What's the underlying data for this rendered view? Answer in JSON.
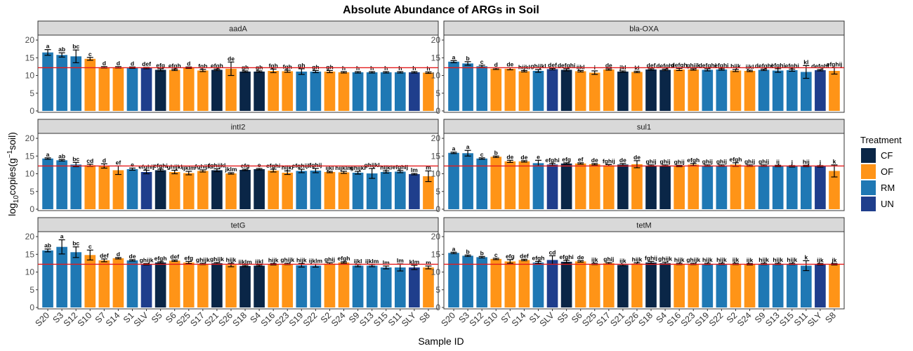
{
  "chart_data": {
    "type": "bar",
    "title": "Absolute Abundance of ARGs in Soil",
    "xlabel": "Sample ID",
    "ylabel": {
      "prefix": "log",
      "sub": "10",
      "mid": "copies(g",
      "sup": "−1",
      "suffix": "soil)"
    },
    "ylim": [
      0,
      21
    ],
    "yticks": [
      0,
      5,
      10,
      15,
      20
    ],
    "reference_line": {
      "value": 12.2,
      "color": "#e41a1c"
    },
    "legend": {
      "title": "Treatment",
      "position": "right",
      "items": [
        {
          "label": "CF",
          "color": "#0a2647"
        },
        {
          "label": "OF",
          "color": "#ff9417"
        },
        {
          "label": "RM",
          "color": "#1f78b4"
        },
        {
          "label": "UN",
          "color": "#1f3e8c"
        }
      ]
    },
    "panels": [
      {
        "gene": "aadA",
        "samples": [
          "S20",
          "S3",
          "S12",
          "S10",
          "S7",
          "S14",
          "S1",
          "SLV",
          "S5",
          "S6",
          "S25",
          "S17",
          "S21",
          "S26",
          "S18",
          "S4",
          "S16",
          "S23",
          "S19",
          "S22",
          "S2",
          "S24",
          "S9",
          "S13",
          "S15",
          "S11",
          "SLY",
          "S8"
        ],
        "treatments": [
          "RM",
          "RM",
          "RM",
          "OF",
          "OF",
          "OF",
          "RM",
          "UN",
          "CF",
          "OF",
          "OF",
          "OF",
          "CF",
          "OF",
          "CF",
          "CF",
          "OF",
          "OF",
          "RM",
          "RM",
          "OF",
          "OF",
          "RM",
          "RM",
          "RM",
          "RM",
          "UN",
          "OF"
        ],
        "values": [
          16.5,
          15.8,
          15.4,
          14.7,
          12.3,
          12.3,
          12.2,
          12.1,
          11.6,
          11.6,
          12.2,
          11.4,
          11.6,
          11.9,
          11.1,
          11.1,
          11.3,
          11.2,
          11.1,
          11.1,
          11.1,
          10.9,
          10.9,
          10.9,
          10.9,
          10.9,
          10.9,
          10.8
        ],
        "errors": [
          0.8,
          0.6,
          1.8,
          0.4,
          0.2,
          0.2,
          0.2,
          0.2,
          0.3,
          0.2,
          0.2,
          0.3,
          0.2,
          1.9,
          0.2,
          0.2,
          0.5,
          0.3,
          0.8,
          0.3,
          0.3,
          0.2,
          0.2,
          0.2,
          0.2,
          0.2,
          0.2,
          0.2
        ],
        "letters": [
          "a",
          "ab",
          "bc",
          "c",
          "d",
          "d",
          "d",
          "def",
          "efg",
          "efgh",
          "d",
          "fgh",
          "efgh",
          "de",
          "gh",
          "gh",
          "fgh",
          "fgh",
          "gh",
          "gh",
          "gh",
          "h",
          "h",
          "h",
          "h",
          "h",
          "h",
          "h"
        ]
      },
      {
        "gene": "bla-OXA",
        "samples": [
          "S20",
          "S3",
          "S12",
          "S10",
          "S7",
          "S14",
          "S1",
          "SLV",
          "S5",
          "S6",
          "S25",
          "S17",
          "S21",
          "S26",
          "S18",
          "S4",
          "S16",
          "S23",
          "S19",
          "S22",
          "S2",
          "S24",
          "S9",
          "S13",
          "S15",
          "S11",
          "SLY",
          "S8"
        ],
        "treatments": [
          "RM",
          "RM",
          "RM",
          "OF",
          "OF",
          "OF",
          "RM",
          "UN",
          "CF",
          "OF",
          "OF",
          "OF",
          "CF",
          "OF",
          "CF",
          "CF",
          "OF",
          "OF",
          "RM",
          "RM",
          "OF",
          "OF",
          "RM",
          "RM",
          "RM",
          "RM",
          "UN",
          "OF"
        ],
        "values": [
          13.9,
          13.4,
          12.6,
          11.9,
          11.9,
          11.2,
          11.3,
          11.8,
          11.6,
          11.2,
          10.8,
          11.7,
          11.1,
          11.0,
          11.7,
          11.6,
          11.7,
          11.7,
          11.6,
          11.7,
          11.4,
          11.3,
          11.6,
          11.4,
          11.5,
          11.0,
          11.5,
          11.3
        ],
        "errors": [
          0.3,
          0.5,
          0.3,
          0.2,
          0.3,
          0.2,
          0.4,
          0.2,
          0.3,
          0.2,
          0.5,
          0.2,
          0.2,
          0.2,
          0.2,
          0.2,
          0.3,
          0.2,
          0.3,
          0.2,
          0.3,
          0.2,
          0.2,
          0.5,
          0.3,
          1.8,
          0.2,
          0.9
        ],
        "letters": [
          "a",
          "b",
          "c",
          "d",
          "de",
          "hijkl",
          "ghijkl",
          "def",
          "defghi",
          "ijkl",
          "i",
          "de",
          "jkl",
          "kl",
          "def",
          "defghi",
          "defgh",
          "ghijk",
          "defghi",
          "efghi",
          "hijk",
          "ijkl",
          "defghi",
          "efghi",
          "efghi",
          "kl",
          "defghi",
          "efghij"
        ]
      },
      {
        "gene": "intI2",
        "samples": [
          "S20",
          "S3",
          "S12",
          "S10",
          "S7",
          "S14",
          "S1",
          "SLV",
          "S5",
          "S6",
          "S25",
          "S17",
          "S21",
          "S26",
          "S18",
          "S4",
          "S16",
          "S23",
          "S19",
          "S22",
          "S2",
          "S24",
          "S9",
          "S13",
          "S15",
          "S11",
          "SLY",
          "S8"
        ],
        "treatments": [
          "RM",
          "RM",
          "RM",
          "OF",
          "OF",
          "OF",
          "RM",
          "UN",
          "CF",
          "OF",
          "OF",
          "OF",
          "CF",
          "OF",
          "CF",
          "CF",
          "OF",
          "OF",
          "RM",
          "RM",
          "OF",
          "OF",
          "RM",
          "RM",
          "RM",
          "RM",
          "UN",
          "OF"
        ],
        "values": [
          14.3,
          13.8,
          12.6,
          12.4,
          12.2,
          11.0,
          11.3,
          10.5,
          11.0,
          10.5,
          10.2,
          10.8,
          11.0,
          10.1,
          11.1,
          11.3,
          10.9,
          10.3,
          10.8,
          10.9,
          10.5,
          10.4,
          10.3,
          10.1,
          10.5,
          10.6,
          9.9,
          9.3
        ],
        "errors": [
          0.2,
          0.2,
          0.6,
          0.3,
          0.6,
          1.2,
          0.3,
          0.5,
          0.3,
          0.5,
          0.5,
          0.3,
          0.4,
          0.2,
          0.2,
          0.2,
          0.4,
          0.5,
          0.5,
          0.6,
          0.2,
          0.3,
          0.4,
          1.4,
          0.3,
          0.3,
          0.2,
          1.5
        ],
        "letters": [
          "a",
          "ab",
          "bc",
          "cd",
          "d",
          "ef",
          "e",
          "efghij",
          "efghi",
          "ghijkl",
          "ijklm",
          "fghijk",
          "fghijkl",
          "jklm",
          "efg",
          "e",
          "efghi",
          "hijkl",
          "efghijk",
          "fghij",
          "ijkl",
          "hijklm",
          "ghijkl",
          "ghijkl",
          "hijkl",
          "efghij",
          "lm",
          "m"
        ]
      },
      {
        "gene": "sul1",
        "samples": [
          "S20",
          "S3",
          "S12",
          "S10",
          "S7",
          "S14",
          "S1",
          "SLV",
          "S5",
          "S6",
          "S25",
          "S17",
          "S21",
          "S26",
          "S18",
          "S4",
          "S16",
          "S23",
          "S19",
          "S22",
          "S2",
          "S24",
          "S9",
          "S13",
          "S15",
          "S11",
          "SLY",
          "S8"
        ],
        "treatments": [
          "RM",
          "RM",
          "RM",
          "OF",
          "OF",
          "OF",
          "RM",
          "UN",
          "CF",
          "OF",
          "OF",
          "OF",
          "CF",
          "OF",
          "CF",
          "CF",
          "OF",
          "OF",
          "RM",
          "RM",
          "OF",
          "OF",
          "RM",
          "RM",
          "RM",
          "RM",
          "UN",
          "OF"
        ],
        "values": [
          15.9,
          15.8,
          14.3,
          14.8,
          13.5,
          13.5,
          13.0,
          12.6,
          12.9,
          12.9,
          12.7,
          12.4,
          12.6,
          12.7,
          12.3,
          12.3,
          12.2,
          12.6,
          12.3,
          12.3,
          12.6,
          12.3,
          12.3,
          12.2,
          12.1,
          12.2,
          12.1,
          10.8
        ],
        "errors": [
          0.2,
          0.8,
          0.2,
          0.2,
          0.3,
          0.2,
          0.8,
          0.3,
          0.2,
          0.2,
          0.2,
          0.2,
          0.3,
          1.0,
          0.2,
          0.2,
          0.2,
          0.3,
          0.2,
          0.2,
          0.5,
          0.2,
          0.2,
          0.2,
          0.2,
          0.2,
          0.2,
          1.7
        ],
        "letters": [
          "a",
          "a",
          "c",
          "b",
          "de",
          "de",
          "e",
          "efghi",
          "efg",
          "ef",
          "de",
          "fghij",
          "de",
          "de",
          "ghij",
          "ghij",
          "ghij",
          "efgh",
          "ghij",
          "ghij",
          "efgh",
          "ghij",
          "ghij",
          "ij",
          "j",
          "hij",
          "j",
          "k"
        ]
      },
      {
        "gene": "tetG",
        "samples": [
          "S20",
          "S3",
          "S12",
          "S10",
          "S7",
          "S14",
          "S1",
          "SLV",
          "S5",
          "S6",
          "S25",
          "S17",
          "S21",
          "S26",
          "S18",
          "S4",
          "S16",
          "S23",
          "S19",
          "S22",
          "S2",
          "S24",
          "S9",
          "S13",
          "S15",
          "S11",
          "SLY",
          "S8"
        ],
        "treatments": [
          "RM",
          "RM",
          "RM",
          "OF",
          "OF",
          "OF",
          "RM",
          "UN",
          "CF",
          "OF",
          "OF",
          "OF",
          "CF",
          "OF",
          "CF",
          "CF",
          "OF",
          "OF",
          "RM",
          "RM",
          "OF",
          "OF",
          "RM",
          "RM",
          "RM",
          "RM",
          "UN",
          "OF"
        ],
        "values": [
          16.1,
          17.1,
          15.6,
          14.8,
          13.3,
          13.9,
          13.3,
          12.2,
          12.7,
          13.2,
          12.7,
          12.3,
          12.5,
          12.0,
          11.7,
          11.8,
          12.2,
          12.3,
          11.9,
          11.8,
          12.4,
          12.7,
          11.8,
          11.8,
          11.3,
          11.3,
          11.3,
          11.3
        ],
        "errors": [
          0.4,
          2.0,
          1.5,
          1.4,
          0.4,
          0.2,
          0.2,
          0.2,
          0.2,
          0.2,
          0.3,
          0.2,
          0.2,
          0.5,
          0.2,
          0.2,
          0.2,
          0.2,
          0.5,
          0.4,
          0.2,
          0.2,
          0.3,
          0.3,
          0.4,
          1.0,
          0.6,
          0.4
        ],
        "letters": [
          "ab",
          "a",
          "bc",
          "c",
          "def",
          "d",
          "de",
          "ghijk",
          "efgh",
          "def",
          "efg",
          "ghijk",
          "ghijk",
          "hijk",
          "ijklm",
          "ijkl",
          "hijk",
          "ghijk",
          "hijk",
          "ijklm",
          "ghij",
          "efgh",
          "ijkl",
          "ijklm",
          "lm",
          "lm",
          "klm",
          "m"
        ]
      },
      {
        "gene": "tetM",
        "samples": [
          "S20",
          "S3",
          "S12",
          "S10",
          "S7",
          "S14",
          "S1",
          "SLV",
          "S5",
          "S6",
          "S25",
          "S17",
          "S21",
          "S26",
          "S18",
          "S4",
          "S16",
          "S23",
          "S19",
          "S22",
          "S2",
          "S24",
          "S9",
          "S13",
          "S15",
          "S11",
          "SLY",
          "S8"
        ],
        "treatments": [
          "RM",
          "RM",
          "RM",
          "OF",
          "OF",
          "OF",
          "RM",
          "UN",
          "CF",
          "OF",
          "OF",
          "OF",
          "CF",
          "OF",
          "CF",
          "CF",
          "OF",
          "OF",
          "RM",
          "RM",
          "OF",
          "OF",
          "RM",
          "RM",
          "RM",
          "RM",
          "UN",
          "OF"
        ],
        "values": [
          15.4,
          14.6,
          14.2,
          13.7,
          13.0,
          13.4,
          12.7,
          13.4,
          12.9,
          13.0,
          12.3,
          12.5,
          12.0,
          12.4,
          12.7,
          12.5,
          12.3,
          12.3,
          12.3,
          12.3,
          12.3,
          12.2,
          12.3,
          12.3,
          12.3,
          11.8,
          12.2,
          12.2
        ],
        "errors": [
          0.2,
          0.2,
          0.2,
          0.2,
          0.5,
          0.2,
          0.3,
          1.2,
          0.4,
          0.2,
          0.2,
          0.2,
          0.2,
          0.2,
          0.3,
          0.3,
          0.2,
          0.2,
          0.2,
          0.2,
          0.2,
          0.2,
          0.2,
          0.2,
          0.2,
          1.4,
          0.2,
          0.2
        ],
        "letters": [
          "a",
          "b",
          "b",
          "c",
          "efg",
          "def",
          "efgh",
          "cd",
          "efghi",
          "de",
          "ijk",
          "ghij",
          "ijk",
          "hijk",
          "fghij",
          "ghijk",
          "hijk",
          "ghijk",
          "hijk",
          "hijk",
          "ijk",
          "ijk",
          "hijk",
          "hijk",
          "hijk",
          "k",
          "ijk",
          "jk"
        ]
      }
    ]
  }
}
